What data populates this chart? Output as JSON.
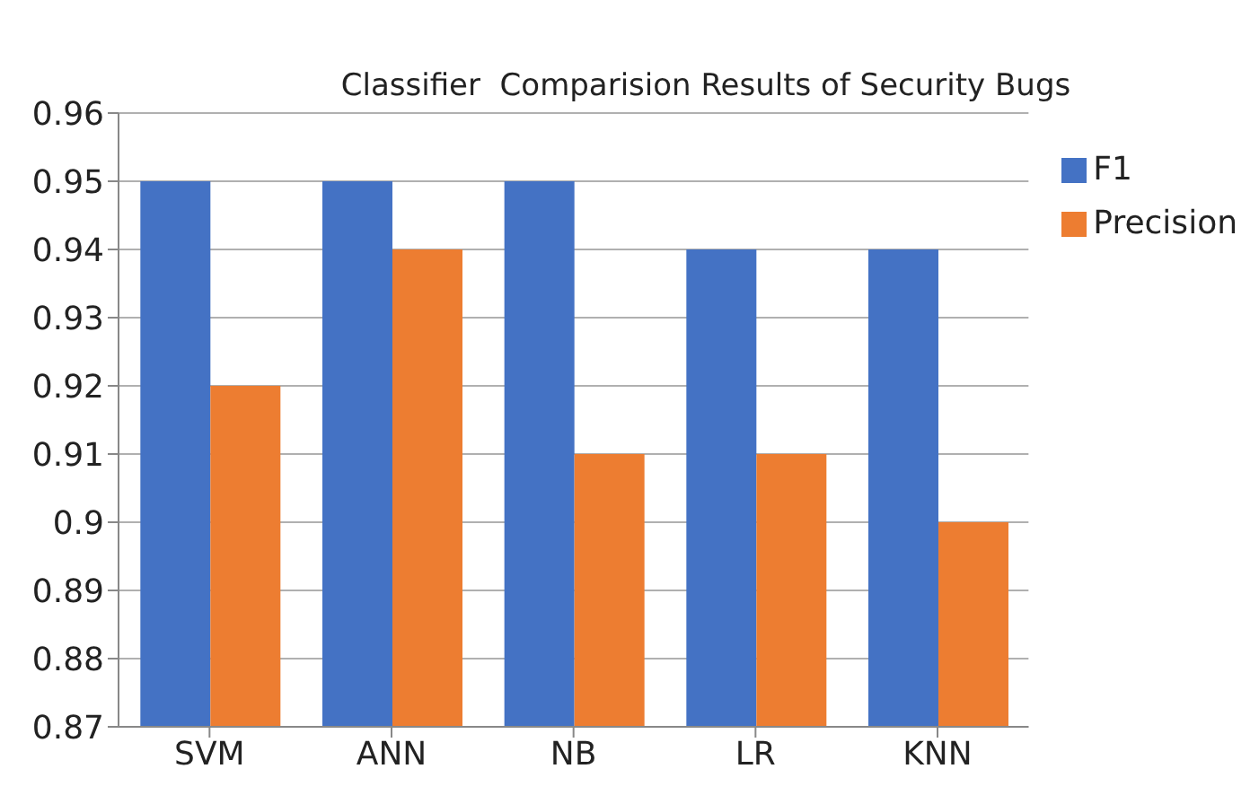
{
  "chart_data": {
    "type": "bar",
    "title": "Classifier  Comparision Results of Security Bugs",
    "categories": [
      "SVM",
      "ANN",
      "NB",
      "LR",
      "KNN"
    ],
    "series": [
      {
        "name": "F1",
        "color": "#4472c4",
        "values": [
          0.95,
          0.95,
          0.95,
          0.94,
          0.94
        ]
      },
      {
        "name": "Precision",
        "color": "#ed7d31",
        "values": [
          0.92,
          0.94,
          0.91,
          0.91,
          0.9
        ]
      }
    ],
    "ylim": [
      0.87,
      0.96
    ],
    "yticks": [
      0.87,
      0.88,
      0.89,
      0.9,
      0.91,
      0.92,
      0.93,
      0.94,
      0.95,
      0.96
    ],
    "grid": "y",
    "legend": "top right"
  }
}
